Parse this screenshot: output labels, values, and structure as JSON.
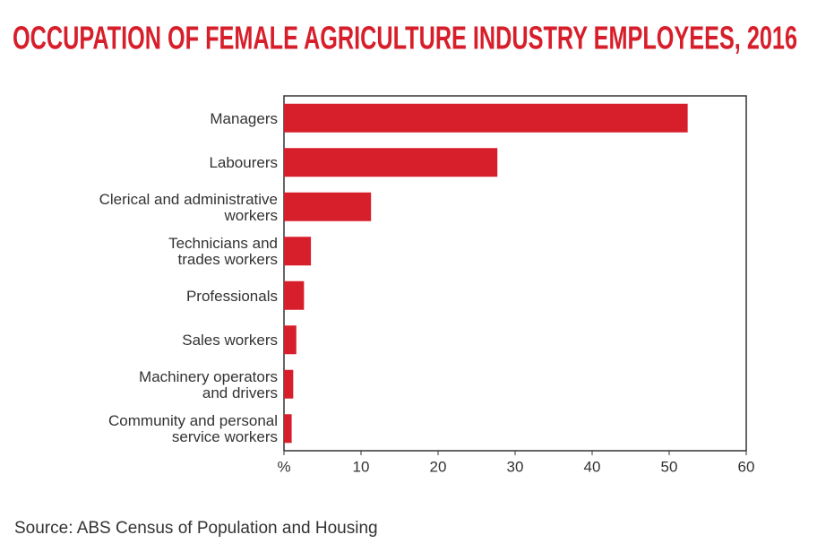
{
  "chart_data": {
    "type": "hbar",
    "title": "OCCUPATION OF FEMALE AGRICULTURE INDUSTRY EMPLOYEES, 2016",
    "source": "Source: ABS Census of Population and Housing",
    "categories": [
      "Managers",
      "Labourers",
      "Clerical and administrative\nworkers",
      "Technicians and\ntrades workers",
      "Professionals",
      "Sales workers",
      "Machinery operators\nand drivers",
      "Community and personal\nservice workers"
    ],
    "values": [
      52.4,
      27.7,
      11.3,
      3.5,
      2.6,
      1.6,
      1.2,
      1.0
    ],
    "color": "#d71f2b",
    "xlim": [
      0,
      60
    ],
    "xticks": [
      {
        "value": 0,
        "label": "%"
      },
      10,
      20,
      30,
      40,
      50,
      60
    ]
  }
}
